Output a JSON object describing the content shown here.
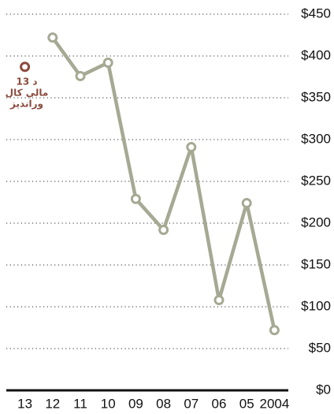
{
  "chart_data": {
    "type": "line",
    "categories": [
      "13",
      "12",
      "11",
      "10",
      "09",
      "08",
      "07",
      "06",
      "05",
      "2004"
    ],
    "series": [
      {
        "color": "#a6a993",
        "values": [
          null,
          422,
          376,
          392,
          229,
          192,
          291,
          108,
          224,
          72
        ]
      },
      {
        "color": "#8c4a3d",
        "values": [
          387,
          null,
          null,
          null,
          null,
          null,
          null,
          null,
          null,
          null
        ]
      }
    ],
    "annotation": [
      "د 13",
      "مالي کال",
      "وراندیز"
    ],
    "ylim": [
      0,
      450
    ],
    "yticks": [
      {
        "value": 0,
        "label": "$0"
      },
      {
        "value": 50,
        "label": "$50"
      },
      {
        "value": 100,
        "label": "$100"
      },
      {
        "value": 150,
        "label": "$150"
      },
      {
        "value": 200,
        "label": "$200"
      },
      {
        "value": 250,
        "label": "$250"
      },
      {
        "value": 300,
        "label": "$300"
      },
      {
        "value": 350,
        "label": "$350"
      },
      {
        "value": 400,
        "label": "$400"
      },
      {
        "value": 450,
        "label": "$450"
      }
    ],
    "grid": true
  }
}
